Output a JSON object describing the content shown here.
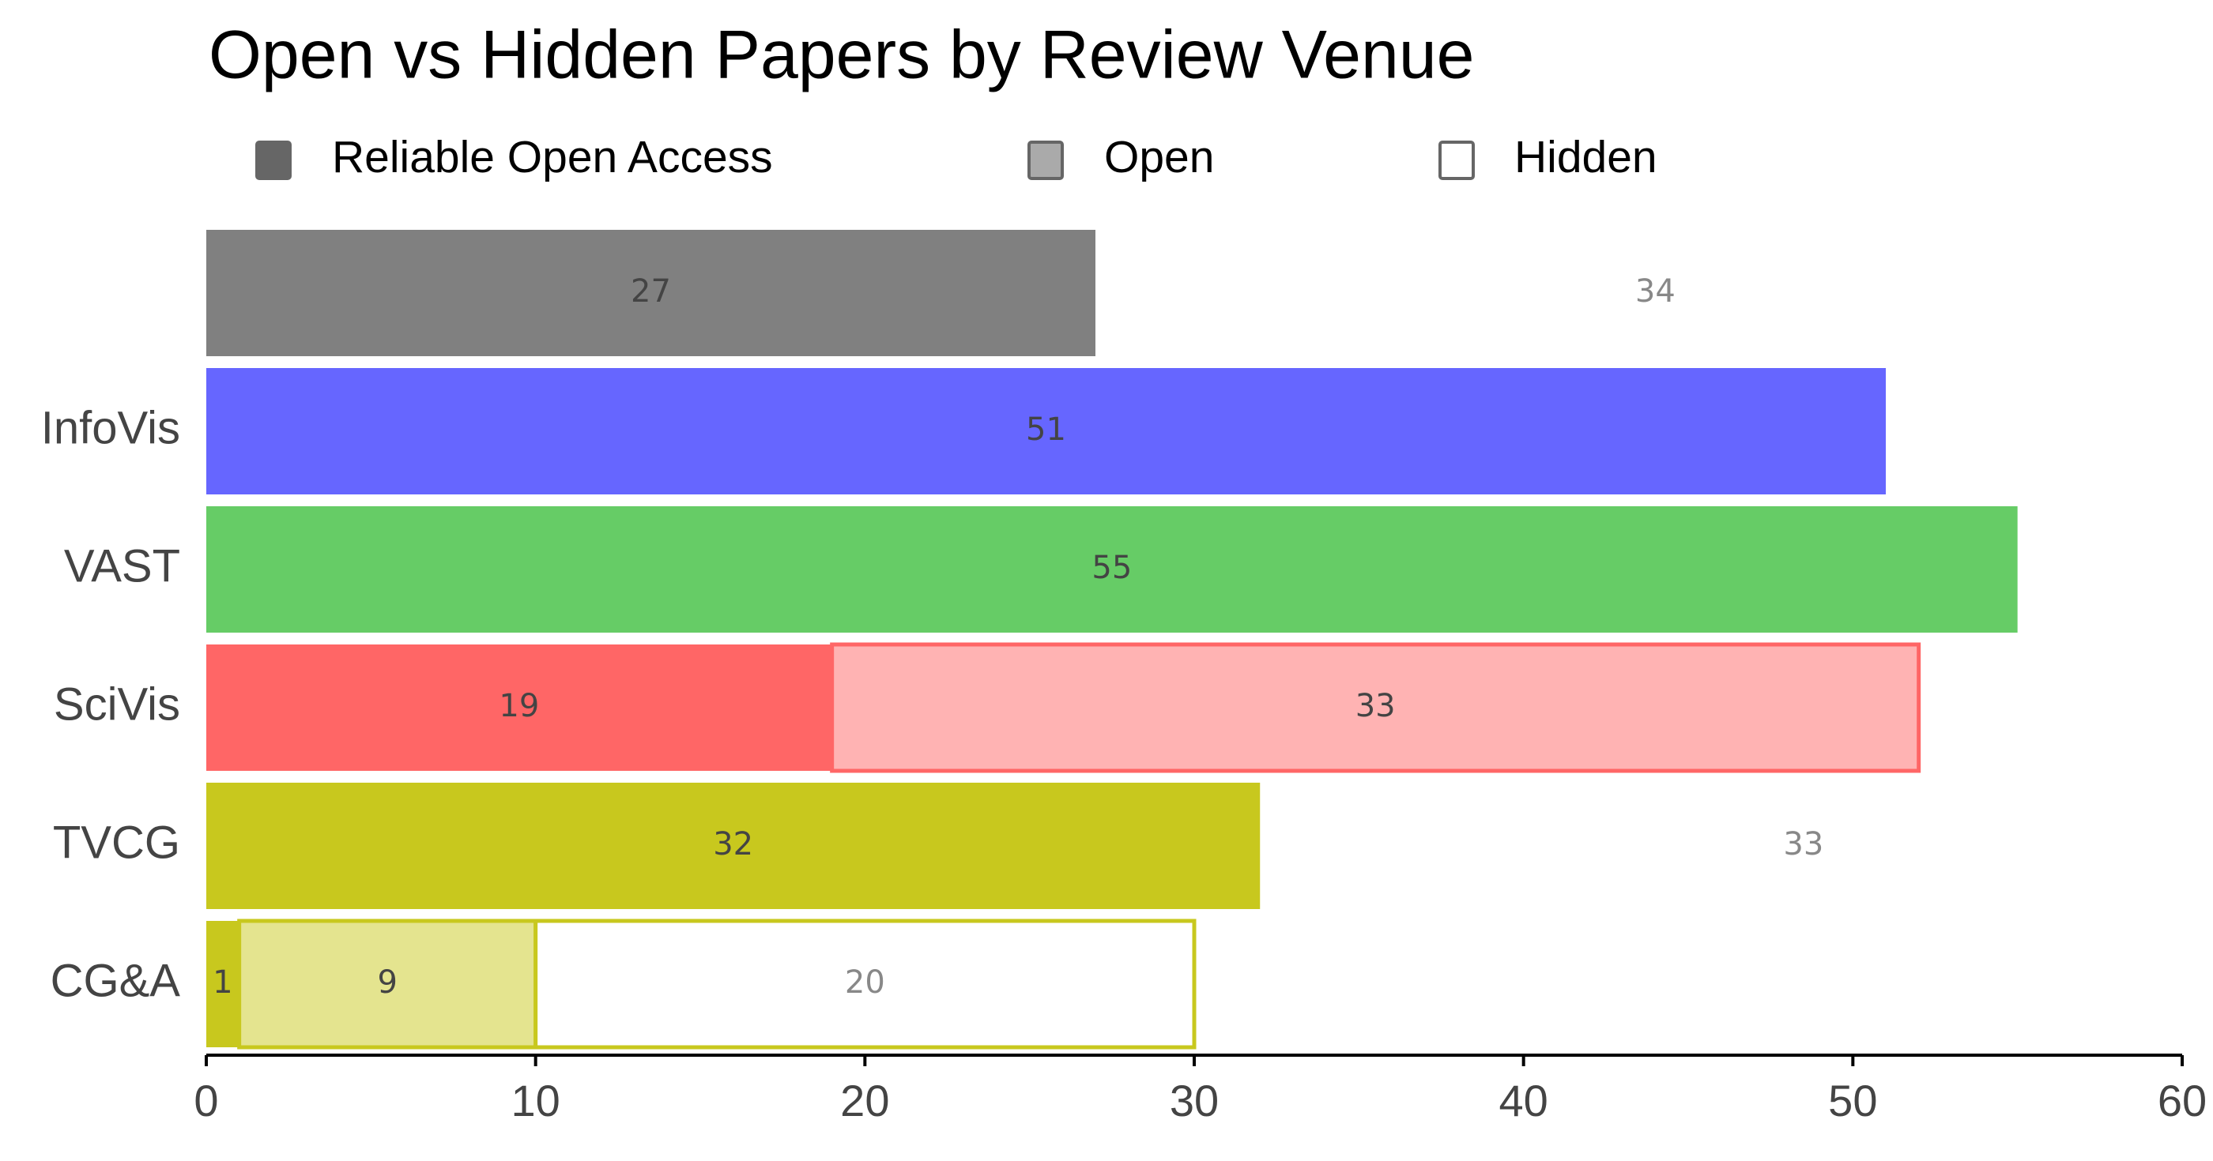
{
  "chart_data": {
    "type": "stacked-bar-horizontal",
    "title": "Open vs Hidden Papers by Review Venue",
    "categories": [
      null,
      "InfoVis",
      "VAST",
      "SciVis",
      "TVCG",
      "CG&A"
    ],
    "category_colors": [
      "#808080",
      "#6666ff",
      "#66cc66",
      "#ff6666",
      "#c8c81e",
      "#c8c81e"
    ],
    "series": [
      {
        "name": "Reliable Open Access",
        "color": "#666666",
        "values": [
          27,
          51,
          55,
          19,
          32,
          1
        ]
      },
      {
        "name": "Open",
        "color": "#aaaaaa",
        "values": [
          null,
          null,
          null,
          33,
          null,
          9
        ]
      },
      {
        "name": "Hidden",
        "color": "#ffffff",
        "values": [
          34,
          null,
          null,
          null,
          33,
          20
        ]
      }
    ],
    "xlim": [
      0,
      60
    ],
    "xticks": [
      0,
      10,
      20,
      30,
      40,
      50,
      60
    ],
    "grid": false
  }
}
